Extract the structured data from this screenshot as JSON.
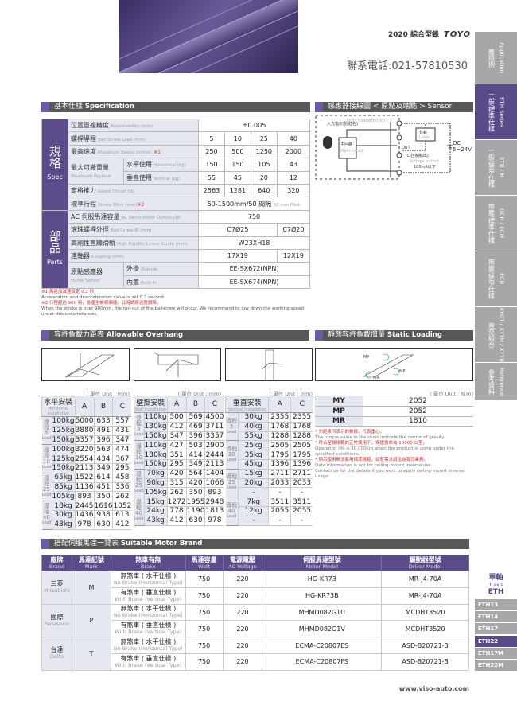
{
  "header": {
    "catalog": "2020 綜合型錄",
    "logo": "TOYO",
    "phone": "聯系電話:021-57810530"
  },
  "sidebar": [
    {
      "zh": "應用例",
      "en": "Application"
    },
    {
      "zh": "一般/標準仕樣",
      "en": "ETH Series",
      "active": true
    },
    {
      "zh": "一般/狹窄仕樣",
      "en": "ETB / M"
    },
    {
      "zh": "無塵/標準仕樣",
      "en": "GCH / ECH"
    },
    {
      "zh": "無塵/狹窄仕樣",
      "en": "ECB"
    },
    {
      "zh": "直交組合",
      "en": "XYGT / XYTH / XYTB"
    },
    {
      "zh": "參考資料",
      "en": "Reference"
    }
  ],
  "spec": {
    "section_zh": "基本仕樣",
    "section_en": "Specification",
    "group_spec_zh": "規格",
    "group_spec_en": "Spec",
    "group_parts_zh": "部品",
    "group_parts_en": "Parts",
    "repeat": {
      "zh": "位置重複精度",
      "en": "Repeatability (mm)",
      "v": "±0.005"
    },
    "lead": {
      "zh": "螺桿導程",
      "en": "Ball Screw Lead (mm)",
      "v": [
        "5",
        "10",
        "25",
        "40"
      ]
    },
    "speed": {
      "zh": "最高速度",
      "en": "Maximum Speed (mm/s)",
      "mark": "※1",
      "v": [
        "250",
        "500",
        "1250",
        "2000"
      ]
    },
    "payload": {
      "zh": "最大可搬重量",
      "en": "Maximum Payload",
      "h_zh": "水平使用",
      "h_en": "Horizontal (kg)",
      "h": [
        "150",
        "150",
        "105",
        "43"
      ],
      "v_zh": "垂直使用",
      "v_en": "Vertical (kg)",
      "v": [
        "55",
        "45",
        "20",
        "12"
      ]
    },
    "thrust": {
      "zh": "定格推力",
      "en": "Rated Thrust (N)",
      "v": [
        "2563",
        "1281",
        "640",
        "320"
      ]
    },
    "stroke": {
      "zh": "標準行程",
      "en": "Stroke Pitch (mm)",
      "mark": "※2",
      "v": "50-1500mm/50 間隔",
      "v_en": "50 mm Pitch"
    },
    "motor": {
      "zh": "AC 伺服馬達容量",
      "en": "AC Servo Motor Output (W)",
      "v": "750"
    },
    "screw": {
      "zh": "滾珠螺桿外徑",
      "en": "Ball Screw Ø (mm)",
      "v1": "C7Ø25",
      "v2": "C7Ø20"
    },
    "guide": {
      "zh": "高剛性直線滑軌",
      "en": "High Rigidity Linear Guide (mm)",
      "v": "W23XH18"
    },
    "coupling": {
      "zh": "連軸器",
      "en": "Coupling (mm)",
      "v1": "17X19",
      "v2": "12X19"
    },
    "sensor": {
      "zh": "原點感應器",
      "en": "Home Sensor",
      "out_zh": "外掛",
      "out_en": "Outside",
      "out": "EE-SX672(NPN)",
      "in_zh": "內置",
      "in_en": "Built-In",
      "in": "EE-SX674(NPN)"
    },
    "notes": [
      {
        "t": "※1 馬達加減速設定 0.2 秒。",
        "red": true
      },
      {
        "t": "Acceleration and deacceleration value is set 0.2 second."
      },
      {
        "t": "※2 行程超過 900 時，會產生螺桿偏擺，此時請將速度調降。",
        "red": true
      },
      {
        "t": "When the stroke is over 900mm, the run-out of the ballscrew will occur. We recommend to low down the working speed under this circumstances."
      }
    ]
  },
  "sensor_layout": {
    "section": "感應器接線圖 < 原點及端點 > Sensor Layout",
    "light": "Light indicator(red)",
    "lamp": "入光指示燈(紅色)",
    "main_zh": "主回路",
    "main_en": "Main circuit",
    "load_zh": "負載",
    "load_en": "Load",
    "out": "OUT",
    "ic": "IC(控制輸出)",
    "vout": "Voltage output",
    "ma": "100mA以下",
    "dc": "DC 5~24V"
  },
  "overhang": {
    "section_zh": "容許負載力距表",
    "section_en": "Allowable Overhang",
    "unit": "( 單位 Unit : mm)",
    "lead_zh": "導程",
    "lead_en": "Lead",
    "tables": [
      {
        "zh": "水平安裝",
        "en": "Horizontal Installation",
        "cols": [
          "A",
          "B",
          "C"
        ],
        "leads": [
          {
            "lead": "5",
            "rows": [
              [
                "100kg",
                "5000",
                "633",
                "557"
              ],
              [
                "125kg",
                "3880",
                "491",
                "431"
              ],
              [
                "150kg",
                "3357",
                "396",
                "347"
              ]
            ]
          },
          {
            "lead": "10",
            "rows": [
              [
                "100kg",
                "3220",
                "563",
                "474"
              ],
              [
                "125kg",
                "2554",
                "434",
                "367"
              ],
              [
                "150kg",
                "2113",
                "349",
                "295"
              ]
            ]
          },
          {
            "lead": "25",
            "rows": [
              [
                "65kg",
                "1522",
                "614",
                "458"
              ],
              [
                "85kg",
                "1136",
                "451",
                "336"
              ],
              [
                "105kg",
                "893",
                "350",
                "262"
              ]
            ]
          },
          {
            "lead": "40",
            "rows": [
              [
                "18kg",
                "2445",
                "1616",
                "1052"
              ],
              [
                "30kg",
                "1436",
                "938",
                "613"
              ],
              [
                "43kg",
                "978",
                "630",
                "412"
              ]
            ]
          }
        ]
      },
      {
        "zh": "壁掛安裝",
        "en": "Wall Installation",
        "cols": [
          "A",
          "B",
          "C"
        ],
        "leads": [
          {
            "lead": "5",
            "rows": [
              [
                "110kg",
                "500",
                "569",
                "4500"
              ],
              [
                "130kg",
                "412",
                "469",
                "3711"
              ],
              [
                "150kg",
                "347",
                "396",
                "3357"
              ]
            ]
          },
          {
            "lead": "10",
            "rows": [
              [
                "110kg",
                "427",
                "503",
                "2900"
              ],
              [
                "130kg",
                "351",
                "414",
                "2444"
              ],
              [
                "150kg",
                "295",
                "349",
                "2113"
              ]
            ]
          },
          {
            "lead": "25",
            "rows": [
              [
                "70kg",
                "420",
                "564",
                "1404"
              ],
              [
                "90kg",
                "315",
                "420",
                "1066"
              ],
              [
                "105kg",
                "262",
                "350",
                "893"
              ]
            ]
          },
          {
            "lead": "40",
            "rows": [
              [
                "15kg",
                "1272",
                "1955",
                "2948"
              ],
              [
                "24kg",
                "778",
                "1190",
                "1813"
              ],
              [
                "43kg",
                "412",
                "630",
                "978"
              ]
            ]
          }
        ]
      },
      {
        "zh": "垂直安裝",
        "en": "Vertical Installation",
        "cols": [
          "A",
          "C"
        ],
        "leads": [
          {
            "lead": "5",
            "rows": [
              [
                "30kg",
                "2355",
                "2355"
              ],
              [
                "40kg",
                "1768",
                "1768"
              ],
              [
                "55kg",
                "1288",
                "1288"
              ]
            ]
          },
          {
            "lead": "10",
            "rows": [
              [
                "25kg",
                "2505",
                "2505"
              ],
              [
                "35kg",
                "1795",
                "1795"
              ],
              [
                "45kg",
                "1396",
                "1396"
              ]
            ]
          },
          {
            "lead": "25",
            "rows": [
              [
                "15kg",
                "2711",
                "2711"
              ],
              [
                "20kg",
                "2033",
                "2033"
              ],
              [
                "-",
                "-",
                "-"
              ]
            ]
          },
          {
            "lead": "40",
            "rows": [
              [
                "7kg",
                "3511",
                "3511"
              ],
              [
                "12kg",
                "2055",
                "2055"
              ],
              [
                "-",
                "-",
                "-"
              ]
            ]
          }
        ]
      }
    ]
  },
  "moment": {
    "section_zh": "靜態容許負載慣量",
    "section_en": "Static Loading Moment",
    "unit": "( 單位 Unit : N.m)",
    "rows": [
      [
        "MY",
        "2052"
      ],
      [
        "MP",
        "2052"
      ],
      [
        "MR",
        "1810"
      ]
    ],
    "notes": [
      {
        "t": "* 力距表所表示的數據，代表重心。",
        "red": true
      },
      {
        "t": "The torque value in the chart indicate the center of gravity."
      },
      {
        "t": "* 符合型錄規範的正常使用下，保證壽命為 10000 公里。",
        "red": true
      },
      {
        "t": "Operation life is 10,000km when the product is using under the specified conditions."
      },
      {
        "t": "* 倒吊使用無法套用標準規範，如有需求請洽詢我司業務。",
        "red": true
      },
      {
        "t": "Data information is not for ceiling-mount inverse use."
      },
      {
        "t": "Contact us for the details if you want to apply ceiling-mount inverse usage."
      }
    ]
  },
  "motor_brand": {
    "section_zh": "搭配伺服馬達一覽表",
    "section_en": "Suitable Motor Brand",
    "headers": [
      [
        "廠牌",
        "Brand"
      ],
      [
        "馬達記號",
        "Mark"
      ],
      [
        "煞車有無",
        "Brake"
      ],
      [
        "馬達容量",
        "Watt"
      ],
      [
        "電源電壓",
        "AC-Voltage"
      ],
      [
        "伺服馬達型號",
        "Motor Model"
      ],
      [
        "驅動器型號",
        "Driver Model"
      ]
    ],
    "brands": [
      {
        "zh": "三菱",
        "en": "Mitsubishi",
        "mark": "M",
        "rows": [
          [
            "無煞車 ( 水平仕樣 )",
            "No Brake (Horizontal Type)",
            "750",
            "220",
            "HG-KR73",
            "MR-J4-70A"
          ],
          [
            "有煞車 ( 垂直仕樣 )",
            "With Brake (Vertical Type)",
            "750",
            "220",
            "HG-KR73B",
            "MR-J4-70A"
          ]
        ]
      },
      {
        "zh": "國際",
        "en": "Panasonic",
        "mark": "P",
        "rows": [
          [
            "無煞車 ( 水平仕樣 )",
            "No Brake (Horizontal Type)",
            "750",
            "220",
            "MHMD082G1U",
            "MCDHT3520"
          ],
          [
            "有煞車 ( 垂直仕樣 )",
            "With Brake (Vertical Type)",
            "750",
            "220",
            "MHMD082G1V",
            "MCDHT3520"
          ]
        ]
      },
      {
        "zh": "台達",
        "en": "Delta",
        "mark": "T",
        "rows": [
          [
            "無煞車 ( 水平仕樣 )",
            "No Brake (Horizontal Type)",
            "750",
            "220",
            "ECMA-C20807ES",
            "ASD-B20721-B"
          ],
          [
            "有煞車 ( 垂直仕樣 )",
            "With Brake (Vertical Type)",
            "750",
            "220",
            "ECMA-C20807FS",
            "ASD-B20721-B"
          ]
        ]
      }
    ]
  },
  "axis_nav": {
    "zh": "單軸",
    "en": "1 axis",
    "series": "ETH",
    "items": [
      {
        "label": "ETH13"
      },
      {
        "label": "ETH14"
      },
      {
        "label": "ETH17"
      },
      {
        "label": "ETH22",
        "active": true
      },
      {
        "label": "ETH17M"
      },
      {
        "label": "ETH22M"
      }
    ]
  },
  "footer": {
    "url": "www.viso-auto.com"
  },
  "colors": {
    "accent": "#5c4b8b",
    "section_bar": "#575757",
    "label_bg": "#e6e8f1",
    "note_red": "#d0302f"
  }
}
